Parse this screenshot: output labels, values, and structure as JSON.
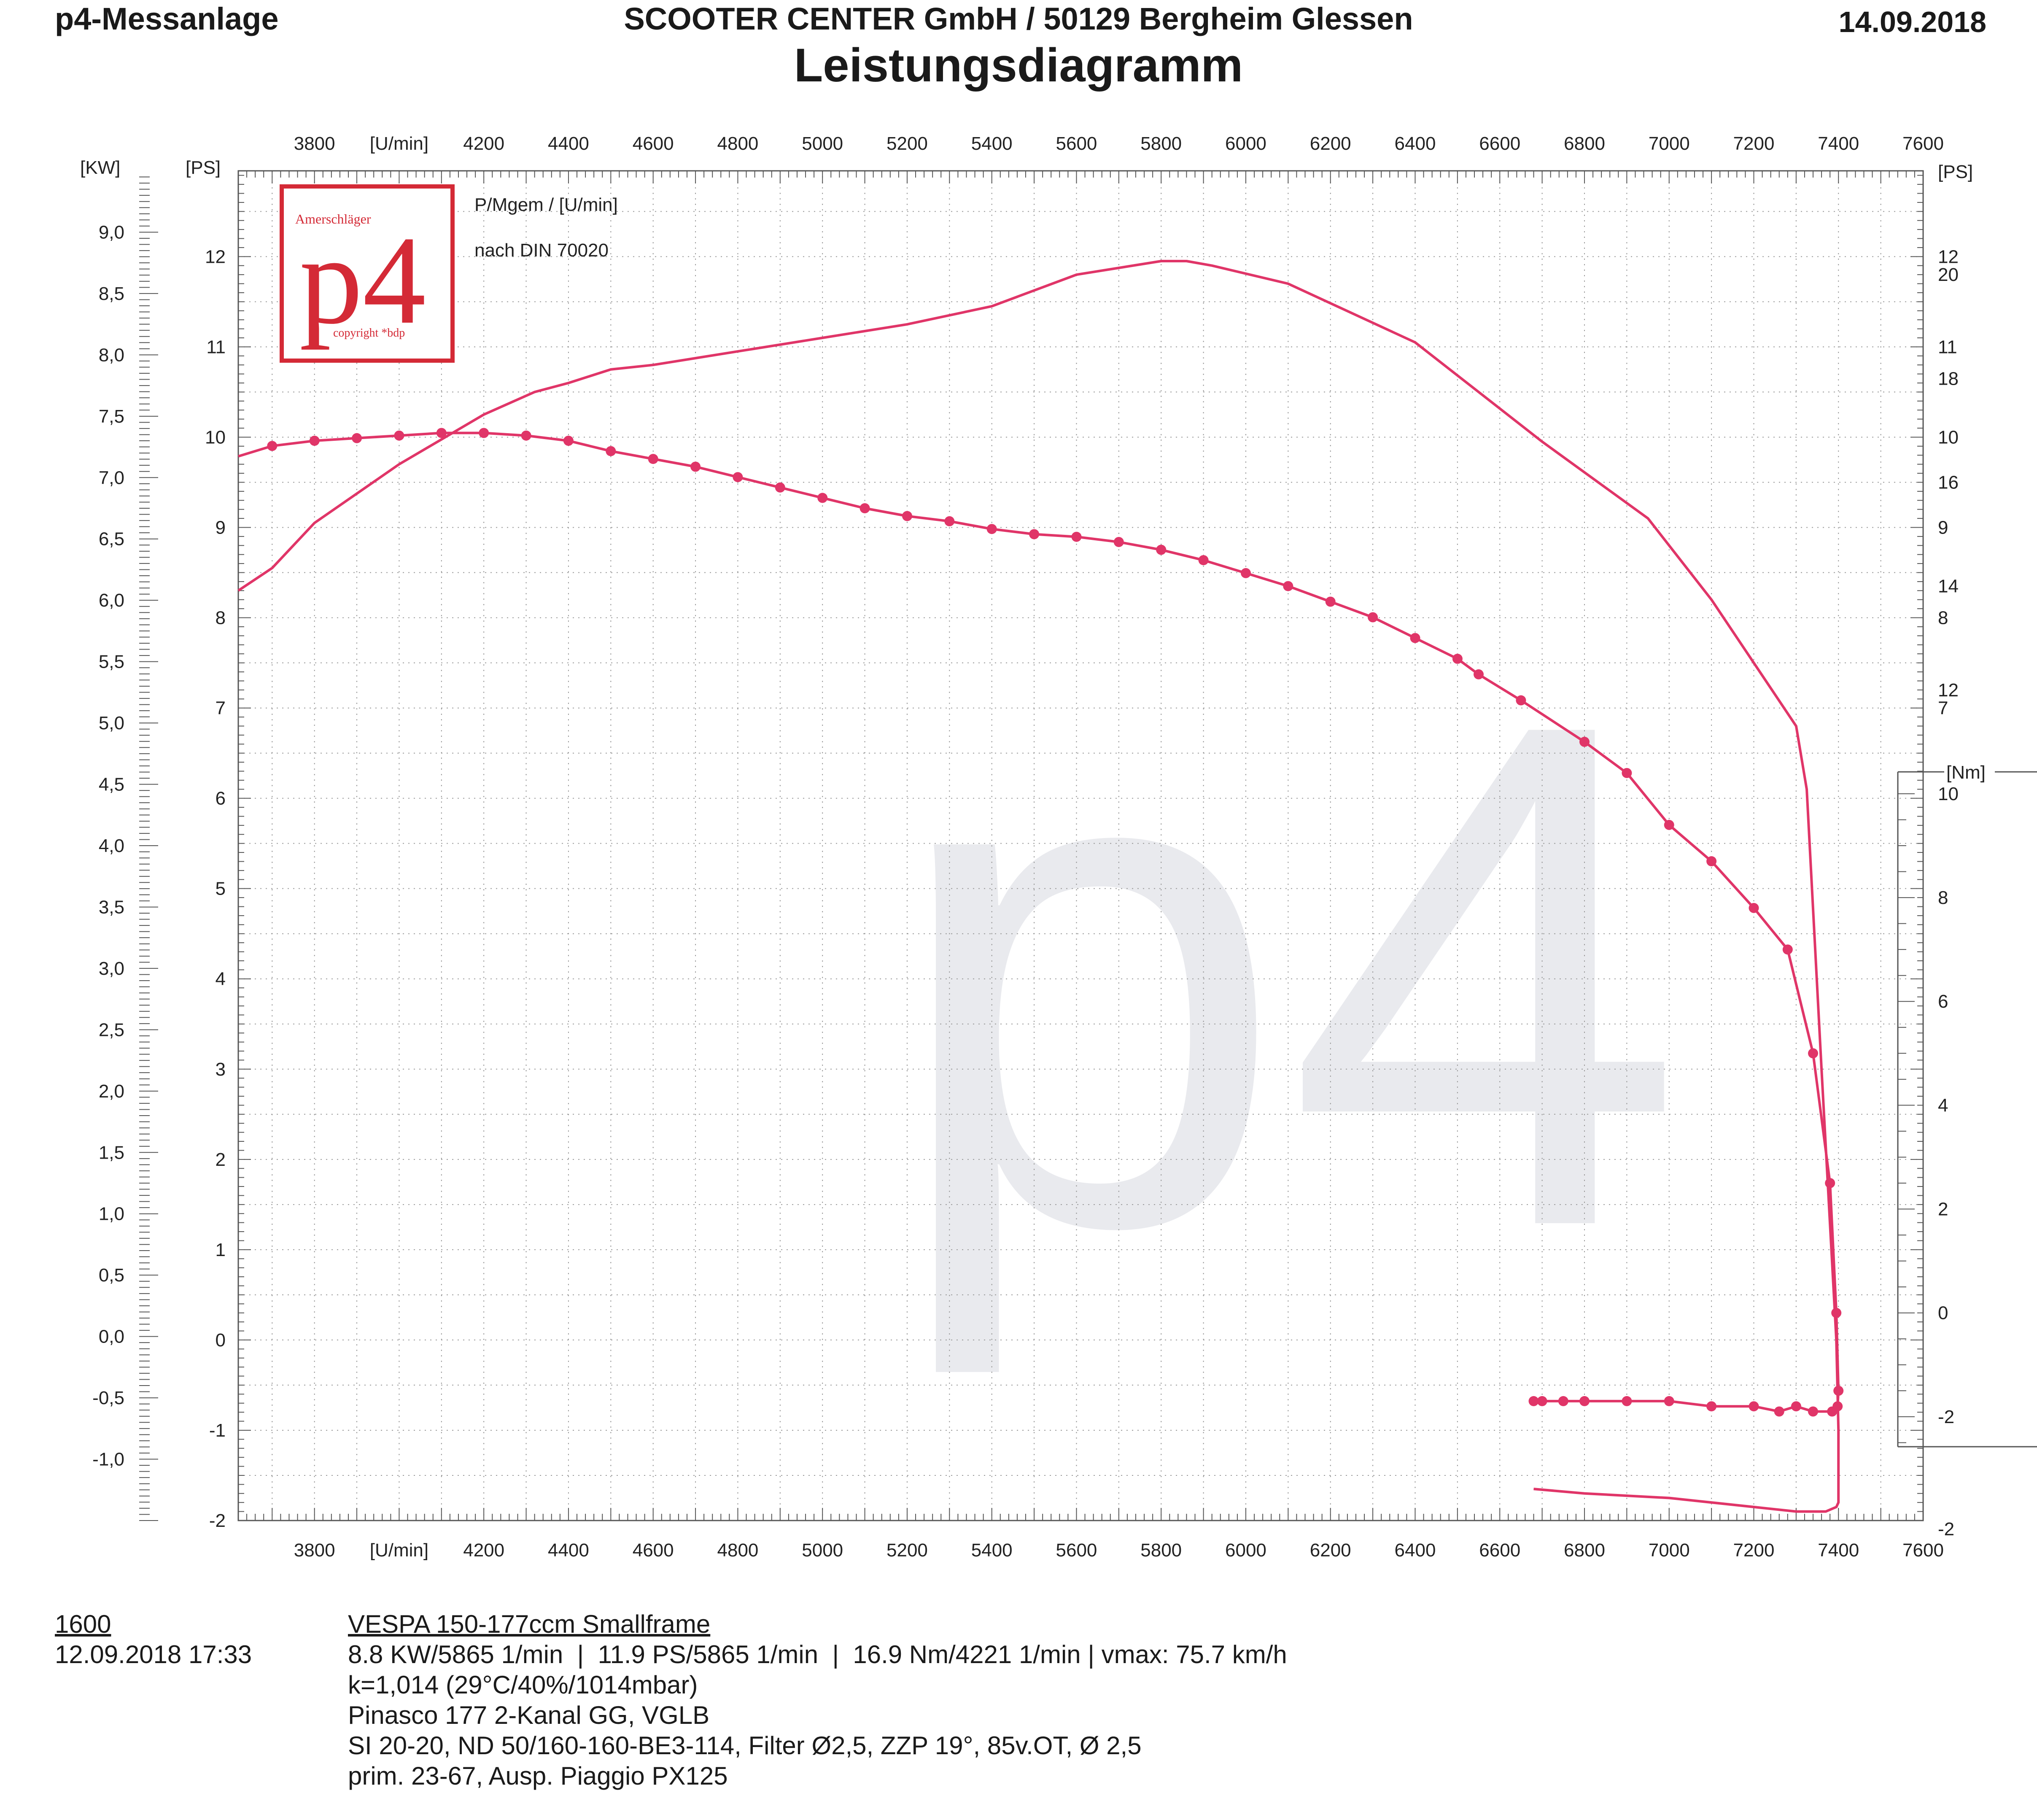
{
  "header": {
    "left": "p4-Messanlage",
    "center": "SCOOTER CENTER GmbH / 50129 Bergheim Glessen",
    "date": "14.09.2018",
    "title": "Leistungsdiagramm"
  },
  "logo": {
    "small_text": "Amerschläger",
    "big_text": "p4",
    "copyright": "copyright *bdp"
  },
  "watermark": "p4",
  "legend": {
    "line1": "P/Mgem / [U/min]",
    "line2": "nach DIN 70020"
  },
  "footer": {
    "id": "1600",
    "datetime": "12.09.2018  17:33",
    "lines": [
      "VESPA 150-177ccm Smallframe",
      "8.8 KW/5865 1/min  |  11.9 PS/5865 1/min  |  16.9 Nm/4221 1/min | vmax: 75.7 km/h",
      "k=1,014 (29°C/40%/1014mbar)",
      "Pinasco 177 2-Kanal GG, VGLB",
      "SI 20-20, ND 50/160-160-BE3-114, Filter Ø2,5, ZZP 19°, 85v.OT, Ø 2,5",
      "prim. 23-67, Ausp. Piaggio PX125"
    ]
  },
  "colors": {
    "curve": "#e03568",
    "grid": "#9a9a9a",
    "axis": "#555555",
    "logo": "#d42a36",
    "watermark": "#e9eaee"
  },
  "chart_data": {
    "type": "line",
    "x_axis": {
      "label": "[U/min]",
      "range": [
        3620,
        7600
      ],
      "ticks": [
        "3800",
        "4200",
        "4400",
        "4600",
        "4800",
        "5000",
        "5200",
        "5400",
        "5600",
        "5800",
        "6000",
        "6200",
        "6400",
        "6600",
        "6800",
        "7000",
        "7200",
        "7400",
        "7600"
      ]
    },
    "y_axis_kw": {
      "label": "[KW]",
      "range": [
        -1.5,
        9.5
      ],
      "ticks": [
        "9,0",
        "8,5",
        "8,0",
        "7,5",
        "7,0",
        "6,5",
        "6,0",
        "5,5",
        "5,0",
        "4,5",
        "4,0",
        "3,5",
        "3,0",
        "2,5",
        "2,0",
        "1,5",
        "1,0",
        "0,5",
        "0,0",
        "-0,5",
        "-1,0"
      ]
    },
    "y_axis_ps": {
      "label": "[PS]",
      "range": [
        -2,
        12.95
      ],
      "ticks": [
        "12",
        "11",
        "10",
        "9",
        "8",
        "7",
        "6",
        "5",
        "4",
        "3",
        "2",
        "1",
        "0",
        "-1",
        "-2"
      ],
      "right_ticks": [
        "12",
        "11",
        "10",
        "9",
        "8",
        "7"
      ]
    },
    "y_axis_nm": {
      "label": "[Nm]",
      "range": [
        -4,
        22
      ],
      "ticks": [
        "20",
        "18",
        "16",
        "14",
        "12",
        "10",
        "8",
        "6",
        "4",
        "2",
        "0",
        "-2"
      ],
      "bottom_label": "-2"
    },
    "series": [
      {
        "unit": "PS",
        "x": [
          3620,
          3700,
          3800,
          4000,
          4200,
          4320,
          4400,
          4500,
          4600,
          4800,
          5000,
          5200,
          5400,
          5600,
          5800,
          5860,
          5920,
          6100,
          6400,
          6700,
          6950,
          7100,
          7300,
          7325,
          7360,
          7395,
          7400,
          7400,
          7395,
          7370,
          7300,
          7200,
          7000,
          6800,
          6680
        ],
        "y": [
          8.3,
          8.55,
          9.05,
          9.7,
          10.25,
          10.5,
          10.6,
          10.75,
          10.8,
          10.95,
          11.1,
          11.25,
          11.45,
          11.8,
          11.95,
          11.95,
          11.9,
          11.7,
          11.05,
          9.95,
          9.1,
          8.2,
          6.8,
          6.1,
          3.0,
          0.0,
          -1.0,
          -1.8,
          -1.85,
          -1.9,
          -1.9,
          -1.85,
          -1.75,
          -1.7,
          -1.65
        ]
      },
      {
        "unit": "Nm",
        "x": [
          3620,
          3700,
          3800,
          3900,
          4000,
          4100,
          4200,
          4300,
          4400,
          4500,
          4600,
          4700,
          4800,
          4900,
          5000,
          5100,
          5200,
          5300,
          5400,
          5500,
          5600,
          5700,
          5800,
          5900,
          6000,
          6100,
          6200,
          6300,
          6400,
          6500,
          6550,
          6650,
          6800,
          6900,
          7000,
          7100,
          7200,
          7280,
          7340,
          7380,
          7395,
          7400,
          7398,
          7385,
          7340,
          7300,
          7260,
          7200,
          7100,
          7000,
          6900,
          6800,
          6750,
          6700,
          6680
        ],
        "y": [
          16.5,
          16.7,
          16.8,
          16.85,
          16.9,
          16.95,
          16.95,
          16.9,
          16.8,
          16.6,
          16.45,
          16.3,
          16.1,
          15.9,
          15.7,
          15.5,
          15.35,
          15.25,
          15.1,
          15.0,
          14.95,
          14.85,
          14.7,
          14.5,
          14.25,
          14.0,
          13.7,
          13.4,
          13.0,
          12.6,
          12.3,
          11.8,
          11.0,
          10.4,
          9.4,
          8.7,
          7.8,
          7.0,
          5.0,
          2.5,
          0.0,
          -1.5,
          -1.8,
          -1.9,
          -1.9,
          -1.8,
          -1.9,
          -1.8,
          -1.8,
          -1.7,
          -1.7,
          -1.7,
          -1.7,
          -1.7,
          -1.7
        ]
      }
    ],
    "grid": true
  }
}
